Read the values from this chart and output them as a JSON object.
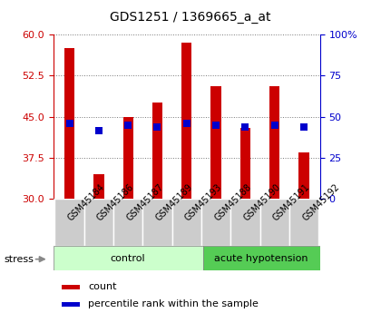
{
  "title": "GDS1251 / 1369665_a_at",
  "samples": [
    "GSM45184",
    "GSM45186",
    "GSM45187",
    "GSM45189",
    "GSM45193",
    "GSM45188",
    "GSM45190",
    "GSM45191",
    "GSM45192"
  ],
  "counts": [
    57.5,
    34.5,
    45.0,
    47.5,
    58.5,
    50.5,
    43.0,
    50.5,
    38.5
  ],
  "percentiles": [
    46.0,
    41.5,
    44.5,
    43.5,
    46.0,
    45.0,
    43.5,
    45.0,
    43.5
  ],
  "bar_color": "#cc0000",
  "dot_color": "#0000cc",
  "left_ylim": [
    30,
    60
  ],
  "right_ylim": [
    0,
    100
  ],
  "left_yticks": [
    30,
    37.5,
    45,
    52.5,
    60
  ],
  "right_yticks": [
    0,
    25,
    50,
    75,
    100
  ],
  "right_yticklabels": [
    "0",
    "25",
    "50",
    "75",
    "100%"
  ],
  "left_tick_color": "#cc0000",
  "right_tick_color": "#0000cc",
  "grid_color": "#777777",
  "control_label": "control",
  "acute_label": "acute hypotension",
  "control_bg_light": "#ccffcc",
  "acute_bg_dark": "#55cc55",
  "label_bg": "#cccccc",
  "stress_label": "stress",
  "legend_count": "count",
  "legend_pct": "percentile rank within the sample",
  "bar_width": 0.35,
  "dot_size": 30,
  "title_fontsize": 10,
  "tick_fontsize": 8,
  "label_fontsize": 7,
  "group_fontsize": 8,
  "legend_fontsize": 8
}
